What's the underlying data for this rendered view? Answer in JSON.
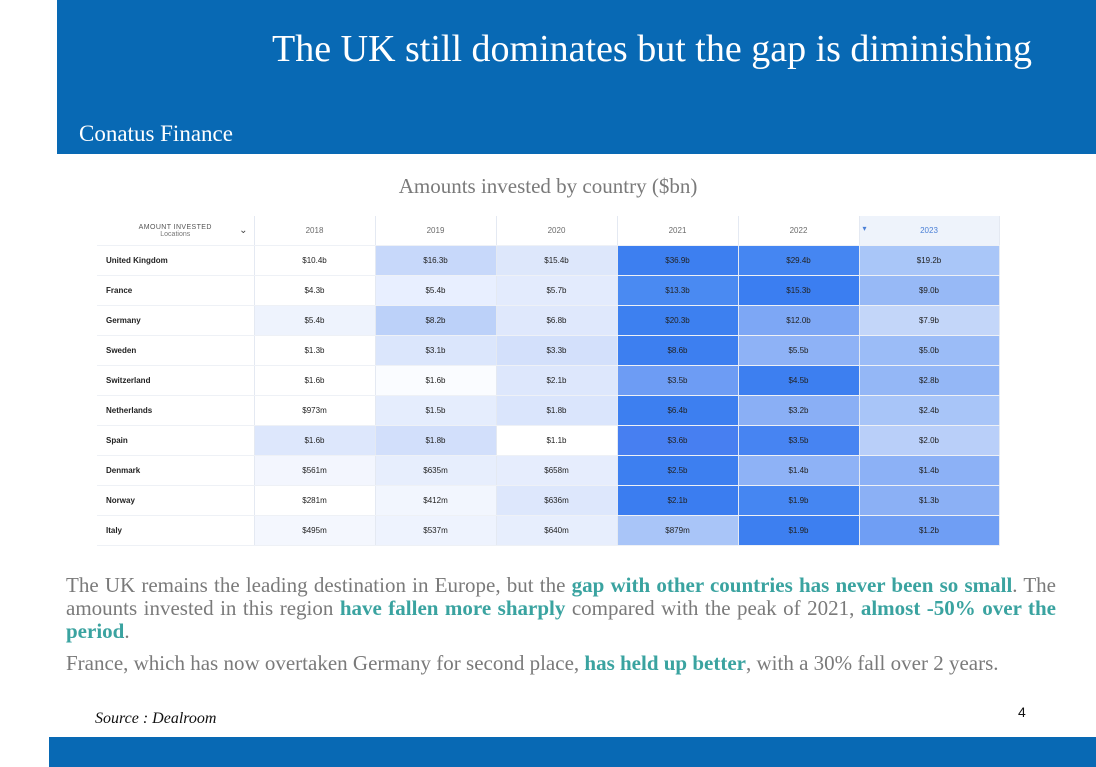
{
  "header": {
    "title": "The UK still dominates but the gap is diminishing",
    "brand": "Conatus Finance"
  },
  "table": {
    "caption": "Amounts invested by country ($bn)",
    "header_main": "AMOUNT INVESTED",
    "header_sub": "Locations",
    "years": [
      "2018",
      "2019",
      "2020",
      "2021",
      "2022",
      "2023"
    ],
    "selected_year_index": 5,
    "rows": [
      {
        "country": "United Kingdom",
        "cells": [
          "$10.4b",
          "$16.3b",
          "$15.4b",
          "$36.9b",
          "$29.4b",
          "$19.2b"
        ],
        "shades": [
          "#ffffff",
          "#c7d8fa",
          "#dde7fb",
          "#3d7ff0",
          "#4586f2",
          "#a9c6f8"
        ]
      },
      {
        "country": "France",
        "cells": [
          "$4.3b",
          "$5.4b",
          "$5.7b",
          "$13.3b",
          "$15.3b",
          "$9.0b"
        ],
        "shades": [
          "#ffffff",
          "#e8efff",
          "#e3ebfd",
          "#4a8af2",
          "#3b7ef1",
          "#97b9f6"
        ]
      },
      {
        "country": "Germany",
        "cells": [
          "$5.4b",
          "$8.2b",
          "$6.8b",
          "$20.3b",
          "$12.0b",
          "$7.9b"
        ],
        "shades": [
          "#eef3fd",
          "#bcd1f9",
          "#dfe8fc",
          "#3d80f0",
          "#7da7f5",
          "#c3d6f9"
        ]
      },
      {
        "country": "Sweden",
        "cells": [
          "$1.3b",
          "$3.1b",
          "$3.3b",
          "$8.6b",
          "$5.5b",
          "$5.0b"
        ],
        "shades": [
          "#ffffff",
          "#dbe6fc",
          "#d3e0fb",
          "#3d7ff0",
          "#8eb2f6",
          "#9bbcf7"
        ]
      },
      {
        "country": "Switzerland",
        "cells": [
          "$1.6b",
          "$1.6b",
          "$2.1b",
          "$3.5b",
          "$4.5b",
          "$2.8b"
        ],
        "shades": [
          "#ffffff",
          "#fafcff",
          "#dde7fc",
          "#6d9cf4",
          "#3d7ff0",
          "#94b7f6"
        ]
      },
      {
        "country": "Netherlands",
        "cells": [
          "$973m",
          "$1.5b",
          "$1.8b",
          "$6.4b",
          "$3.2b",
          "$2.4b"
        ],
        "shades": [
          "#ffffff",
          "#e5edfd",
          "#dae5fc",
          "#3d7ff0",
          "#8aaff5",
          "#a8c5f8"
        ]
      },
      {
        "country": "Spain",
        "cells": [
          "$1.6b",
          "$1.8b",
          "$1.1b",
          "$3.6b",
          "$3.5b",
          "$2.0b"
        ],
        "shades": [
          "#dde7fc",
          "#d2dffb",
          "#ffffff",
          "#477ff1",
          "#4784f2",
          "#b9cff9"
        ]
      },
      {
        "country": "Denmark",
        "cells": [
          "$561m",
          "$635m",
          "$658m",
          "$2.5b",
          "$1.4b",
          "$1.4b"
        ],
        "shades": [
          "#f3f6fe",
          "#e7eefd",
          "#e6edfd",
          "#3d7ff0",
          "#8eb2f6",
          "#8cb1f6"
        ]
      },
      {
        "country": "Norway",
        "cells": [
          "$281m",
          "$412m",
          "$636m",
          "$2.1b",
          "$1.9b",
          "$1.3b"
        ],
        "shades": [
          "#ffffff",
          "#f2f6fe",
          "#dde7fc",
          "#3b7df0",
          "#4586f2",
          "#8bb0f5"
        ]
      },
      {
        "country": "Italy",
        "cells": [
          "$495m",
          "$537m",
          "$640m",
          "$879m",
          "$1.9b",
          "$1.2b"
        ],
        "shades": [
          "#f4f7fe",
          "#eef3fe",
          "#e7eefd",
          "#a9c5f8",
          "#3d7ff0",
          "#6f9ef4"
        ]
      }
    ]
  },
  "body": {
    "p1": [
      {
        "text": "The UK remains the leading destination in Europe, but the ",
        "hl": false
      },
      {
        "text": "gap with other countries has never been so small",
        "hl": true
      },
      {
        "text": ". The amounts invested in this region ",
        "hl": false
      },
      {
        "text": "have fallen more sharply",
        "hl": true
      },
      {
        "text": " compared with the peak of 2021, ",
        "hl": false
      },
      {
        "text": "almost -50% over the period",
        "hl": true
      },
      {
        "text": ".",
        "hl": false
      }
    ],
    "p2": [
      {
        "text": "France, which has now overtaken Germany for second place, ",
        "hl": false
      },
      {
        "text": "has held up better",
        "hl": true
      },
      {
        "text": ", with a 30% fall over 2 years.",
        "hl": false
      }
    ]
  },
  "footer": {
    "source": "Source : Dealroom",
    "page_number": "4"
  },
  "colors": {
    "brand_blue": "#0869b4",
    "highlight_teal": "#3aa3a0",
    "body_gray": "#7a7a7a"
  }
}
